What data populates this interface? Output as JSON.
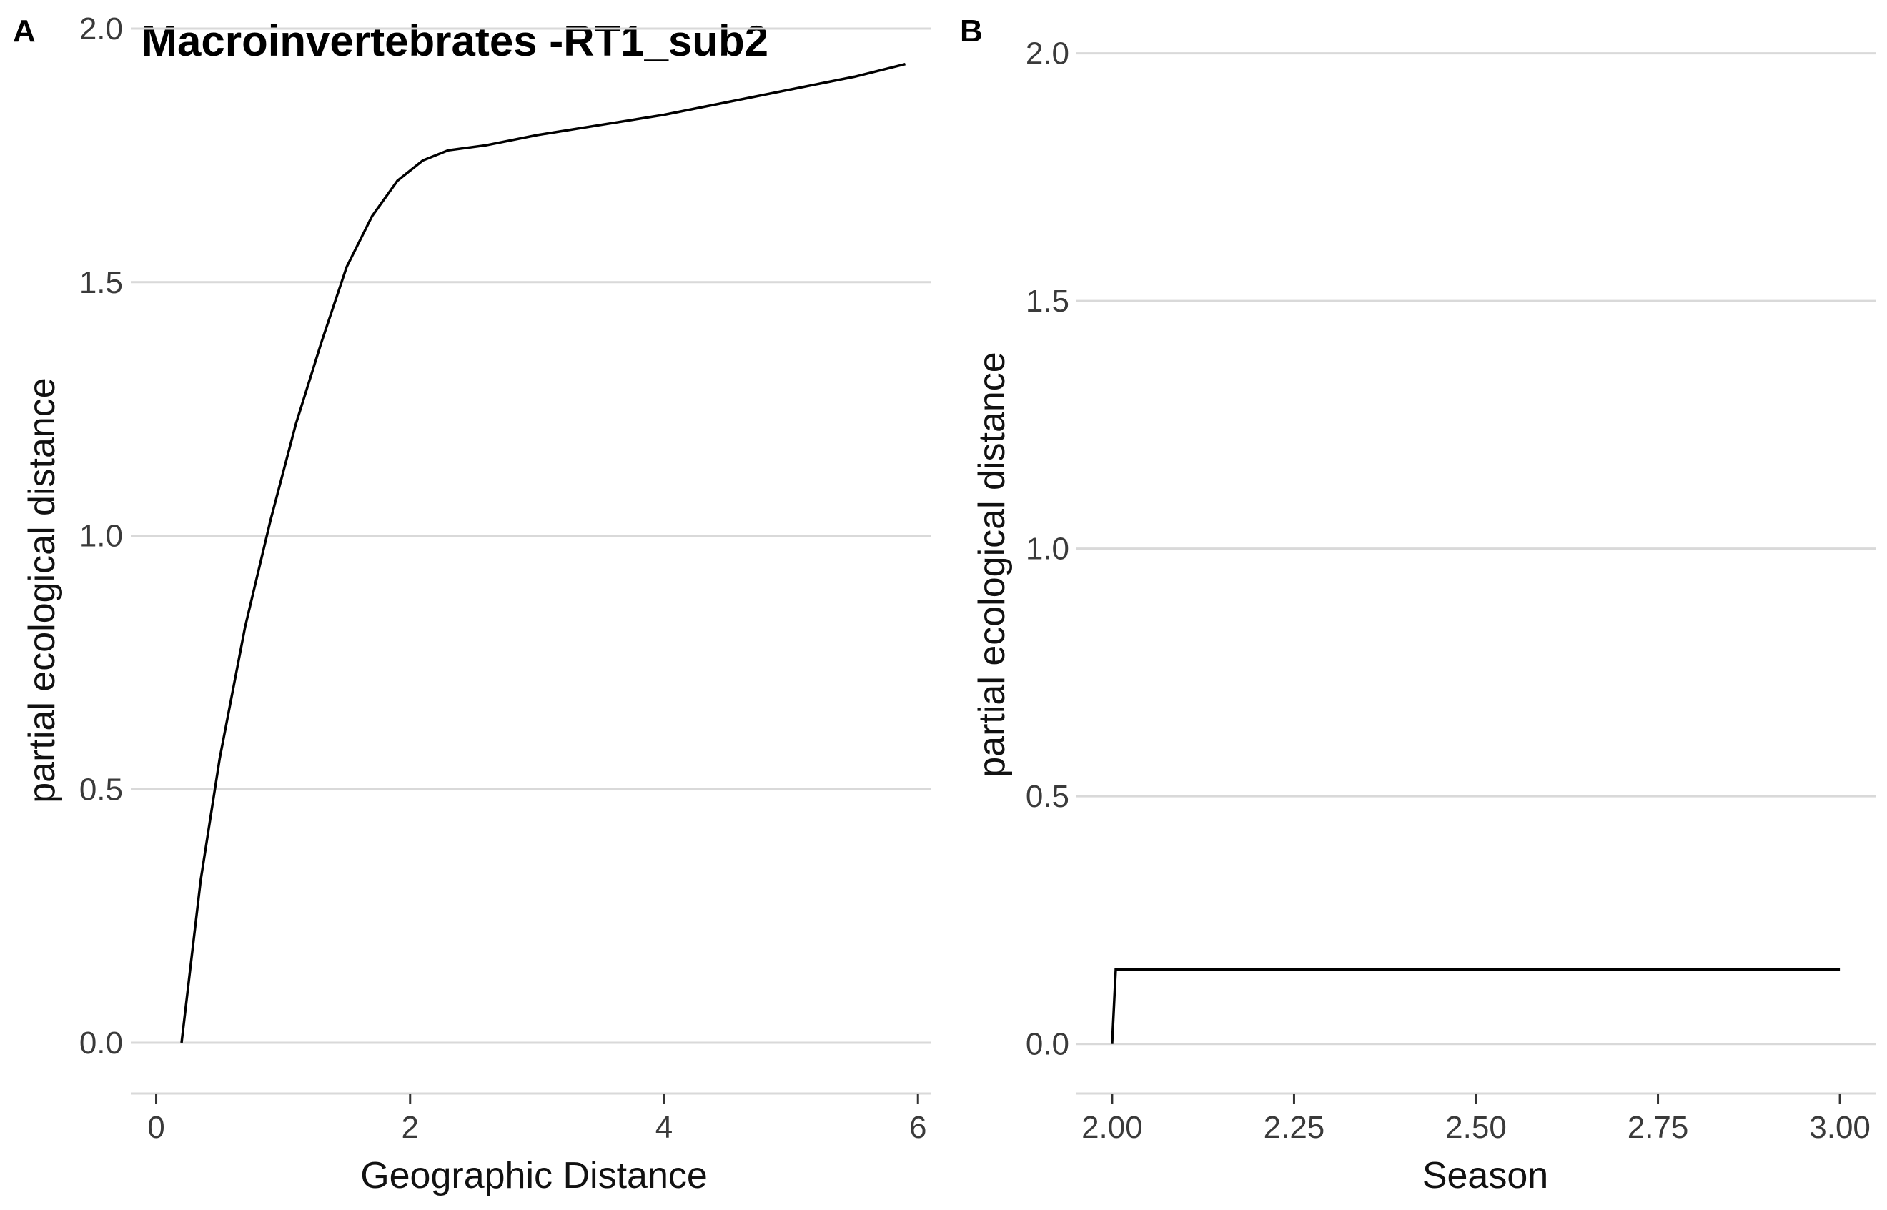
{
  "chart_data": [
    {
      "panel_label": "A",
      "type": "line",
      "title": "Macroinvertebrates -RT1_sub2",
      "xlabel": "Geographic Distance",
      "ylabel": "partial ecological distance",
      "xlim": [
        -0.2,
        6.1
      ],
      "ylim": [
        -0.1,
        2.0
      ],
      "x_ticks": [
        0,
        2,
        4,
        6
      ],
      "x_tick_labels": [
        "0",
        "2",
        "4",
        "6"
      ],
      "y_ticks": [
        0.0,
        0.5,
        1.0,
        1.5,
        2.0
      ],
      "y_tick_labels": [
        "0.0",
        "0.5",
        "1.0",
        "1.5",
        "2.0"
      ],
      "grid": "horizontal",
      "series": [
        {
          "color": "#000000",
          "x": [
            0.2,
            0.35,
            0.5,
            0.7,
            0.9,
            1.1,
            1.3,
            1.5,
            1.7,
            1.9,
            2.1,
            2.3,
            2.6,
            3.0,
            3.5,
            4.0,
            4.5,
            5.0,
            5.5,
            5.9
          ],
          "y": [
            0.0,
            0.32,
            0.56,
            0.82,
            1.03,
            1.22,
            1.38,
            1.53,
            1.63,
            1.7,
            1.74,
            1.76,
            1.77,
            1.79,
            1.81,
            1.83,
            1.855,
            1.88,
            1.905,
            1.93
          ]
        }
      ]
    },
    {
      "panel_label": "B",
      "type": "line",
      "title": "",
      "xlabel": "Season",
      "ylabel": "partial ecological distance",
      "xlim": [
        1.95,
        3.05
      ],
      "ylim": [
        -0.1,
        2.05
      ],
      "x_ticks": [
        2.0,
        2.25,
        2.5,
        2.75,
        3.0
      ],
      "x_tick_labels": [
        "2.00",
        "2.25",
        "2.50",
        "2.75",
        "3.00"
      ],
      "y_ticks": [
        0.0,
        0.5,
        1.0,
        1.5,
        2.0
      ],
      "y_tick_labels": [
        "0.0",
        "0.5",
        "1.0",
        "1.5",
        "2.0"
      ],
      "grid": "horizontal",
      "series": [
        {
          "color": "#000000",
          "x": [
            2.0,
            2.005,
            3.0
          ],
          "y": [
            0.0,
            0.15,
            0.15
          ]
        }
      ]
    }
  ]
}
